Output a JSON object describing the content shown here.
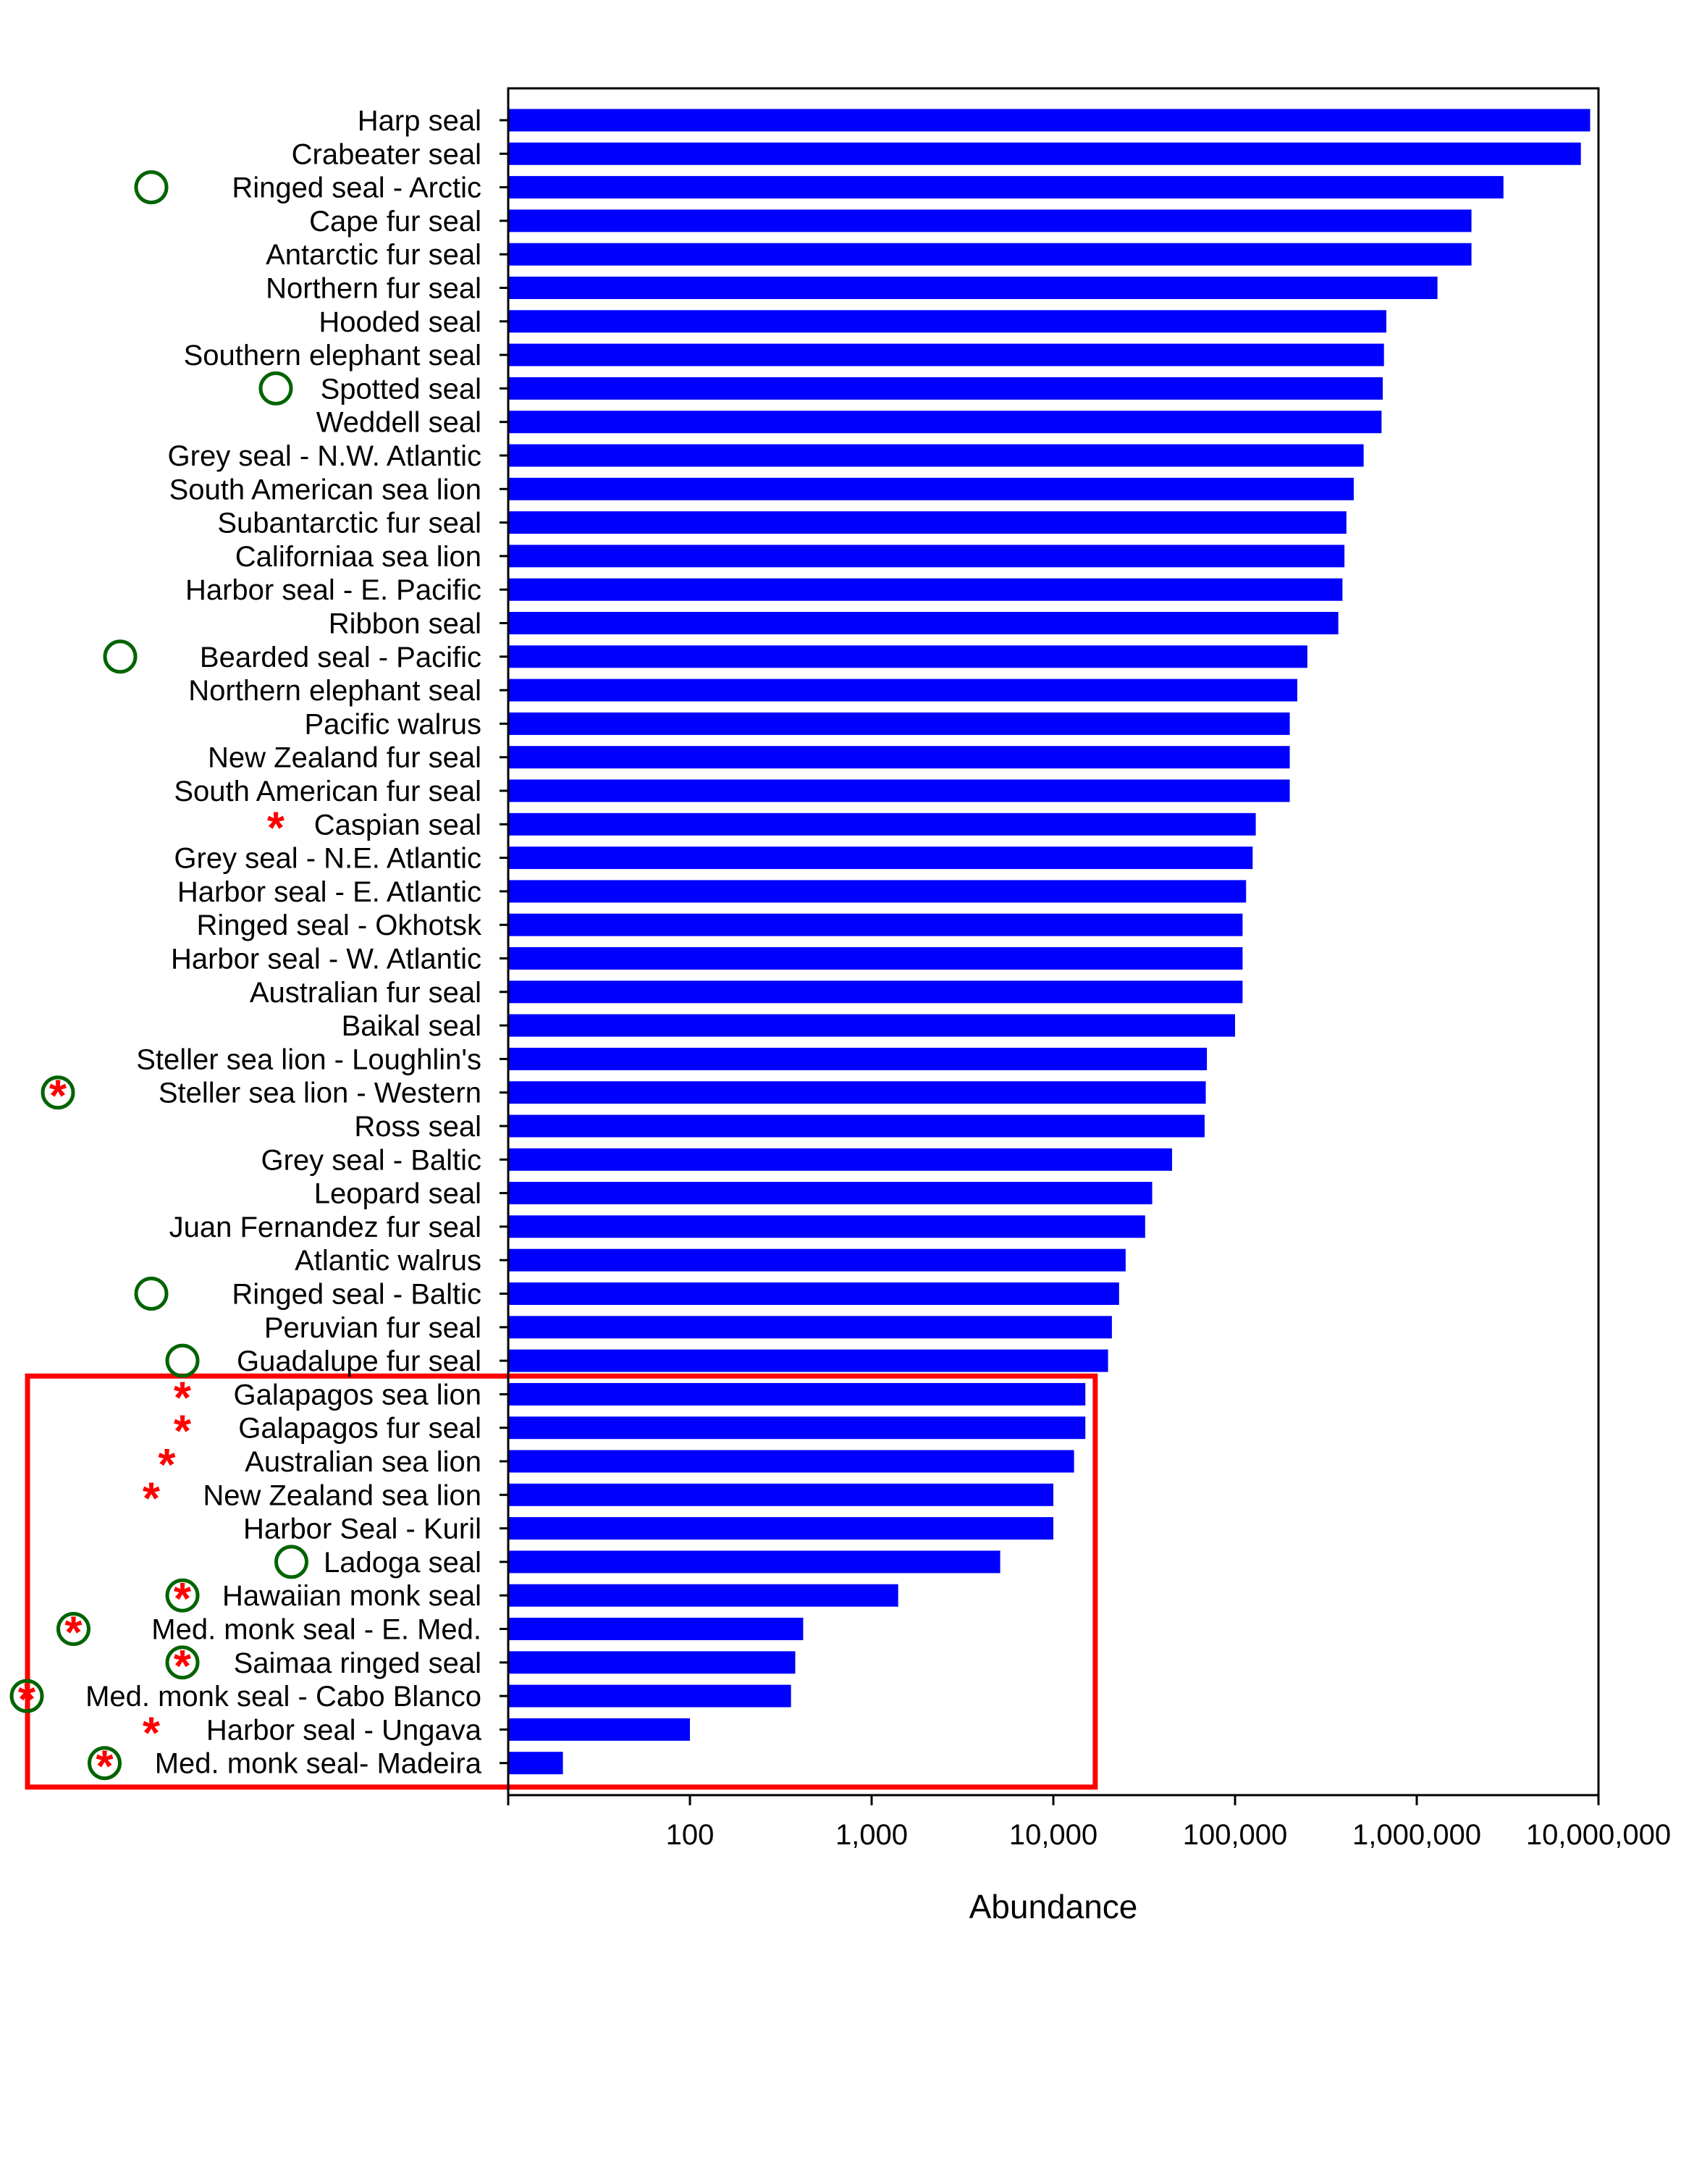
{
  "chart_data": {
    "type": "bar",
    "orientation": "horizontal",
    "xscale": "log",
    "xlim": [
      10,
      10000000
    ],
    "xlabel": "Abundance",
    "ylabel": "",
    "title": "",
    "grid": false,
    "x_ticks": [
      {
        "value": 10,
        "label": ""
      },
      {
        "value": 100,
        "label": "100"
      },
      {
        "value": 1000,
        "label": "1,000"
      },
      {
        "value": 10000,
        "label": "10,000"
      },
      {
        "value": 100000,
        "label": "100,000"
      },
      {
        "value": 1000000,
        "label": "1,000,000"
      },
      {
        "value": 10000000,
        "label": "10,000,000"
      }
    ],
    "bar_color": "#0000ff",
    "marker_colors": {
      "circle": "#006400",
      "star": "#ff0000"
    },
    "highlight_box_color": "#ff0000",
    "highlight_box_range": [
      "Galapagos sea lion",
      "Med. monk seal- Madeira"
    ],
    "highlight_box_xmax": 17000,
    "categories": [
      "Harp seal",
      "Crabeater seal",
      "Ringed seal - Arctic",
      "Cape fur seal",
      "Antarctic fur seal",
      "Northern fur seal",
      "Hooded seal",
      "Southern elephant seal",
      "Spotted seal",
      "Weddell seal",
      "Grey seal - N.W. Atlantic",
      "South American sea lion",
      "Subantarctic fur seal",
      "Californiaa sea lion",
      "Harbor seal -  E. Pacific",
      "Ribbon seal",
      "Bearded seal - Pacific",
      "Northern elephant seal",
      "Pacific walrus",
      "New Zealand fur seal",
      "South American fur seal",
      "Caspian seal",
      "Grey seal - N.E. Atlantic",
      "Harbor seal - E. Atlantic",
      "Ringed seal - Okhotsk",
      "Harbor seal - W. Atlantic",
      "Australian fur seal",
      "Baikal seal",
      "Steller sea lion - Loughlin's",
      "Steller sea lion - Western",
      "Ross seal",
      "Grey seal - Baltic",
      "Leopard seal",
      "Juan Fernandez fur seal",
      "Atlantic walrus",
      "Ringed seal - Baltic",
      "Peruvian fur seal",
      "Guadalupe fur seal",
      "Galapagos sea lion",
      "Galapagos fur seal",
      "Australian sea lion",
      "New Zealand sea lion",
      "Harbor Seal - Kuril",
      "Ladoga seal",
      "Hawaiian monk seal",
      "Med. monk seal  - E. Med.",
      "Saimaa ringed seal",
      "Med. monk seal - Cabo Blanco",
      "Harbor seal - Ungava",
      "Med. monk seal- Madeira"
    ],
    "values": [
      9000000,
      8000000,
      3000000,
      2000000,
      2000000,
      1300000,
      680000,
      660000,
      650000,
      640000,
      510000,
      450000,
      410000,
      400000,
      390000,
      370000,
      250000,
      220000,
      200000,
      200000,
      200000,
      130000,
      125000,
      115000,
      110000,
      110000,
      110000,
      100000,
      70000,
      69000,
      68000,
      45000,
      35000,
      32000,
      25000,
      23000,
      21000,
      20000,
      15000,
      15000,
      13000,
      10000,
      10000,
      5100,
      1400,
      420,
      380,
      360,
      100,
      20
    ],
    "markers": [
      "",
      "",
      "circle",
      "",
      "",
      "",
      "",
      "",
      "circle",
      "",
      "",
      "",
      "",
      "",
      "",
      "",
      "circle",
      "",
      "",
      "",
      "",
      "star",
      "",
      "",
      "",
      "",
      "",
      "",
      "",
      "circle+star",
      "",
      "",
      "",
      "",
      "",
      "circle",
      "",
      "circle",
      "star",
      "star",
      "star",
      "star",
      "",
      "circle",
      "circle+star",
      "circle+star",
      "circle+star",
      "circle+star",
      "star",
      "circle+star"
    ]
  }
}
